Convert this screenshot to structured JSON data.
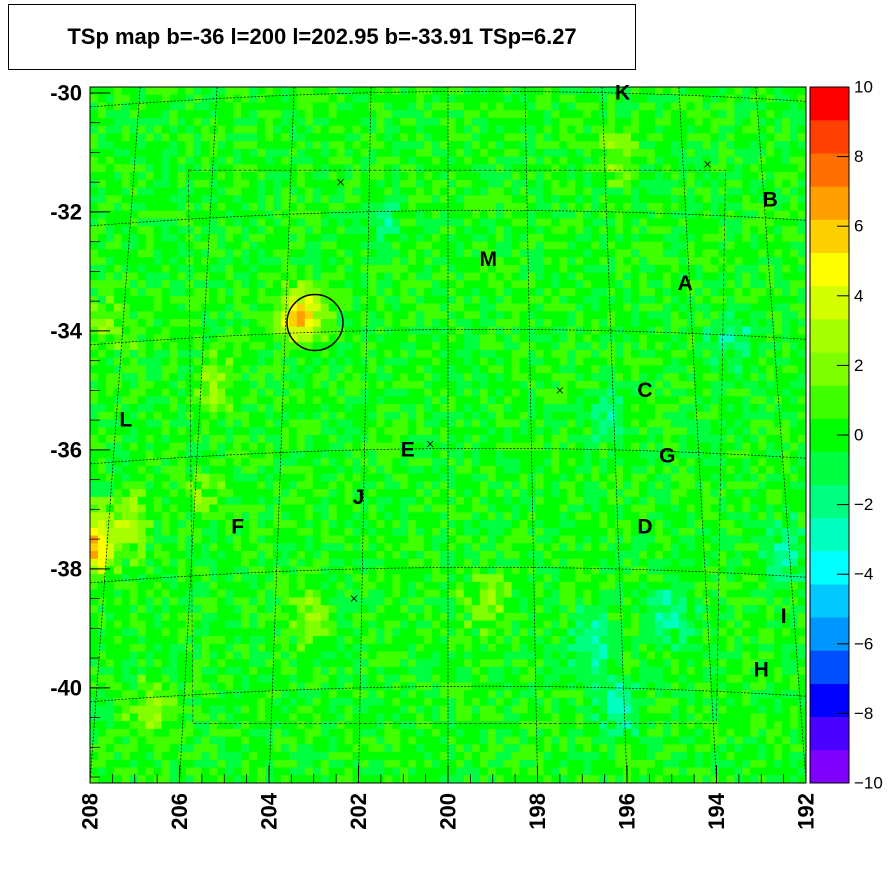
{
  "title": "TSp map b=-36 l=200 l=202.95 b=-33.91 TSp=6.27",
  "chart_data": {
    "type": "heatmap",
    "title": "TSp map b=-36 l=200 l=202.95 b=-33.91 TSp=6.27",
    "xlabel": "",
    "ylabel": "",
    "xlim": [
      208,
      192
    ],
    "ylim": [
      -41.6,
      -29.9
    ],
    "x_ticks": [
      "208",
      "206",
      "204",
      "202",
      "200",
      "198",
      "196",
      "194",
      "192"
    ],
    "y_ticks": [
      "-30",
      "-32",
      "-34",
      "-36",
      "-38",
      "-40"
    ],
    "z_range": [
      -10,
      10
    ],
    "colorbar_ticks": [
      "10",
      "8",
      "6",
      "4",
      "2",
      "0",
      "−2",
      "−4",
      "−6",
      "−8",
      "−10"
    ],
    "colorscale": [
      "#7f00ff",
      "#4a00ff",
      "#0000ff",
      "#0050ff",
      "#0096ff",
      "#00c8ff",
      "#00ffff",
      "#00ffc0",
      "#00ff80",
      "#00ff40",
      "#00ff00",
      "#40ff00",
      "#80ff00",
      "#a8ff00",
      "#d4ff00",
      "#ffff00",
      "#ffd000",
      "#ffa000",
      "#ff7000",
      "#ff4000",
      "#ff0000"
    ],
    "background_level": 0,
    "hotspots": [
      {
        "x": 203.3,
        "y": -33.75,
        "value": 6.27
      },
      {
        "x": 207.9,
        "y": -37.6,
        "value": 6.5
      },
      {
        "x": 205.2,
        "y": -34.9,
        "value": 2.5
      },
      {
        "x": 207.1,
        "y": -37.2,
        "value": 2.5
      },
      {
        "x": 199.1,
        "y": -38.6,
        "value": 2.2
      },
      {
        "x": 203.1,
        "y": -38.8,
        "value": 2.0
      },
      {
        "x": 206.6,
        "y": -40.4,
        "value": 2.2
      },
      {
        "x": 196.3,
        "y": -31.0,
        "value": 2.0
      },
      {
        "x": 205.5,
        "y": -36.8,
        "value": 1.5
      },
      {
        "x": 207.5,
        "y": -33.9,
        "value": 1.8
      },
      {
        "x": 196.8,
        "y": -39.2,
        "value": -2.8
      },
      {
        "x": 196.2,
        "y": -40.3,
        "value": -2.8
      },
      {
        "x": 195.0,
        "y": -38.7,
        "value": -2.2
      },
      {
        "x": 193.6,
        "y": -34.1,
        "value": -2.0
      },
      {
        "x": 196.5,
        "y": -35.4,
        "value": -1.8
      },
      {
        "x": 192.4,
        "y": -37.7,
        "value": -2.2
      },
      {
        "x": 201.5,
        "y": -32.1,
        "value": -1.6
      }
    ],
    "marked_source": {
      "l": 202.95,
      "b": -33.91,
      "TSp": 6.27
    },
    "source_labels": [
      {
        "name": "K",
        "x": 196.1,
        "y": -30.0
      },
      {
        "name": "B",
        "x": 192.8,
        "y": -31.8
      },
      {
        "name": "M",
        "x": 199.1,
        "y": -32.8
      },
      {
        "name": "A",
        "x": 194.7,
        "y": -33.2
      },
      {
        "name": "C",
        "x": 195.6,
        "y": -35.0
      },
      {
        "name": "L",
        "x": 207.2,
        "y": -35.5
      },
      {
        "name": "E",
        "x": 200.9,
        "y": -36.0
      },
      {
        "name": "G",
        "x": 195.1,
        "y": -36.1
      },
      {
        "name": "J",
        "x": 202.0,
        "y": -36.8
      },
      {
        "name": "F",
        "x": 204.7,
        "y": -37.3
      },
      {
        "name": "D",
        "x": 195.6,
        "y": -37.3
      },
      {
        "name": "I",
        "x": 192.5,
        "y": -38.8
      },
      {
        "name": "H",
        "x": 193.0,
        "y": -39.7
      }
    ],
    "small_markers": [
      {
        "x": 202.4,
        "y": -31.5
      },
      {
        "x": 194.2,
        "y": -31.2
      },
      {
        "x": 197.5,
        "y": -35.0
      },
      {
        "x": 200.4,
        "y": -35.9
      },
      {
        "x": 202.1,
        "y": -38.5
      }
    ],
    "grid": true
  }
}
